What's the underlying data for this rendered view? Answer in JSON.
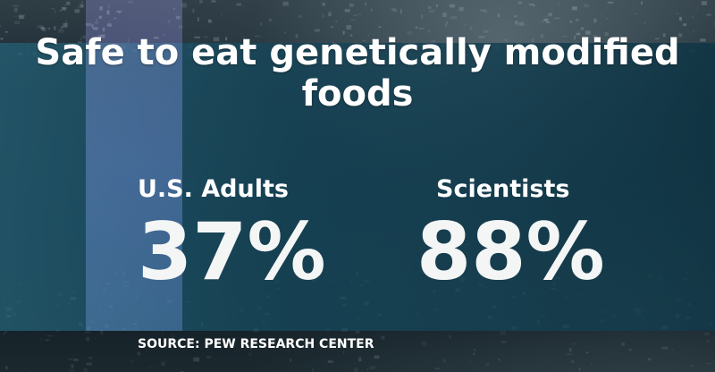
{
  "chart_data": {
    "type": "table",
    "title": "Safe to eat genetically modified foods",
    "categories": [
      "U.S. Adults",
      "Scientists"
    ],
    "values": [
      "37%",
      "88%"
    ],
    "unit": "%"
  },
  "source": "SOURCE: PEW RESEARCH CENTER",
  "colors": {
    "panel": "#1a5a72",
    "band": "#4a4a8c",
    "text": "#ffffff"
  }
}
